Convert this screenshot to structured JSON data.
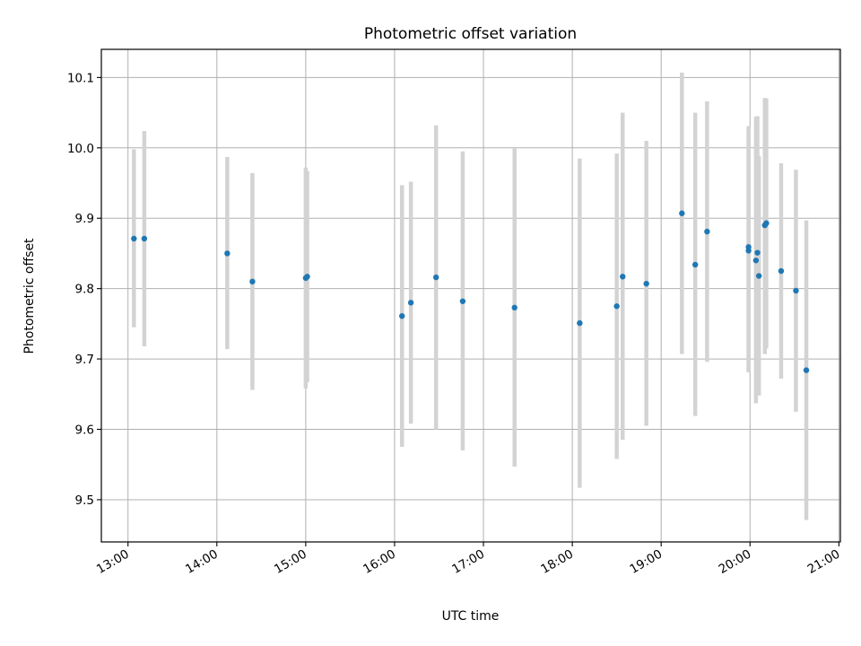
{
  "chart_data": {
    "type": "scatter",
    "title": "Photometric offset variation",
    "xlabel": "UTC time",
    "ylabel": "Photometric offset",
    "x_ticks": [
      "13:00",
      "14:00",
      "15:00",
      "16:00",
      "17:00",
      "18:00",
      "19:00",
      "20:00",
      "21:00"
    ],
    "y_ticks": [
      "9.5",
      "9.6",
      "9.7",
      "9.8",
      "9.9",
      "10.0",
      "10.1"
    ],
    "xlim": [
      "12:42",
      "21:01"
    ],
    "ylim": [
      9.44,
      10.14
    ],
    "grid": true,
    "legend": "none",
    "point_color": "#1f77b4",
    "errorbar_color": "#d3d3d3",
    "series": [
      {
        "points": [
          {
            "x": "13:04",
            "y": 9.871,
            "low": 9.745,
            "high": 9.998
          },
          {
            "x": "13:11",
            "y": 9.871,
            "low": 9.718,
            "high": 10.024
          },
          {
            "x": "14:07",
            "y": 9.85,
            "low": 9.714,
            "high": 9.987
          },
          {
            "x": "14:24",
            "y": 9.81,
            "low": 9.656,
            "high": 9.964
          },
          {
            "x": "15:00",
            "y": 9.815,
            "low": 9.658,
            "high": 9.972
          },
          {
            "x": "15:01",
            "y": 9.817,
            "low": 9.667,
            "high": 9.967
          },
          {
            "x": "16:05",
            "y": 9.761,
            "low": 9.575,
            "high": 9.947
          },
          {
            "x": "16:11",
            "y": 9.78,
            "low": 9.608,
            "high": 9.952
          },
          {
            "x": "16:28",
            "y": 9.816,
            "low": 9.6,
            "high": 10.032
          },
          {
            "x": "16:46",
            "y": 9.782,
            "low": 9.57,
            "high": 9.995
          },
          {
            "x": "17:21",
            "y": 9.773,
            "low": 9.547,
            "high": 9.999
          },
          {
            "x": "18:05",
            "y": 9.751,
            "low": 9.517,
            "high": 9.985
          },
          {
            "x": "18:30",
            "y": 9.775,
            "low": 9.558,
            "high": 9.992
          },
          {
            "x": "18:34",
            "y": 9.817,
            "low": 9.585,
            "high": 10.05
          },
          {
            "x": "18:50",
            "y": 9.807,
            "low": 9.605,
            "high": 10.01
          },
          {
            "x": "19:14",
            "y": 9.907,
            "low": 9.707,
            "high": 10.107
          },
          {
            "x": "19:23",
            "y": 9.834,
            "low": 9.619,
            "high": 10.05
          },
          {
            "x": "19:31",
            "y": 9.881,
            "low": 9.696,
            "high": 10.066
          },
          {
            "x": "19:59",
            "y": 9.859,
            "low": 9.681,
            "high": 10.031
          },
          {
            "x": "19:59",
            "y": 9.854,
            "low": 9.684,
            "high": 10.024
          },
          {
            "x": "20:04",
            "y": 9.84,
            "low": 9.637,
            "high": 10.044
          },
          {
            "x": "20:05",
            "y": 9.851,
            "low": 9.65,
            "high": 10.045
          },
          {
            "x": "20:06",
            "y": 9.818,
            "low": 9.648,
            "high": 9.988
          },
          {
            "x": "20:10",
            "y": 9.89,
            "low": 9.707,
            "high": 10.071
          },
          {
            "x": "20:11",
            "y": 9.893,
            "low": 9.715,
            "high": 10.07
          },
          {
            "x": "20:21",
            "y": 9.825,
            "low": 9.672,
            "high": 9.978
          },
          {
            "x": "20:31",
            "y": 9.797,
            "low": 9.625,
            "high": 9.969
          },
          {
            "x": "20:38",
            "y": 9.684,
            "low": 9.471,
            "high": 9.897
          }
        ]
      }
    ]
  }
}
